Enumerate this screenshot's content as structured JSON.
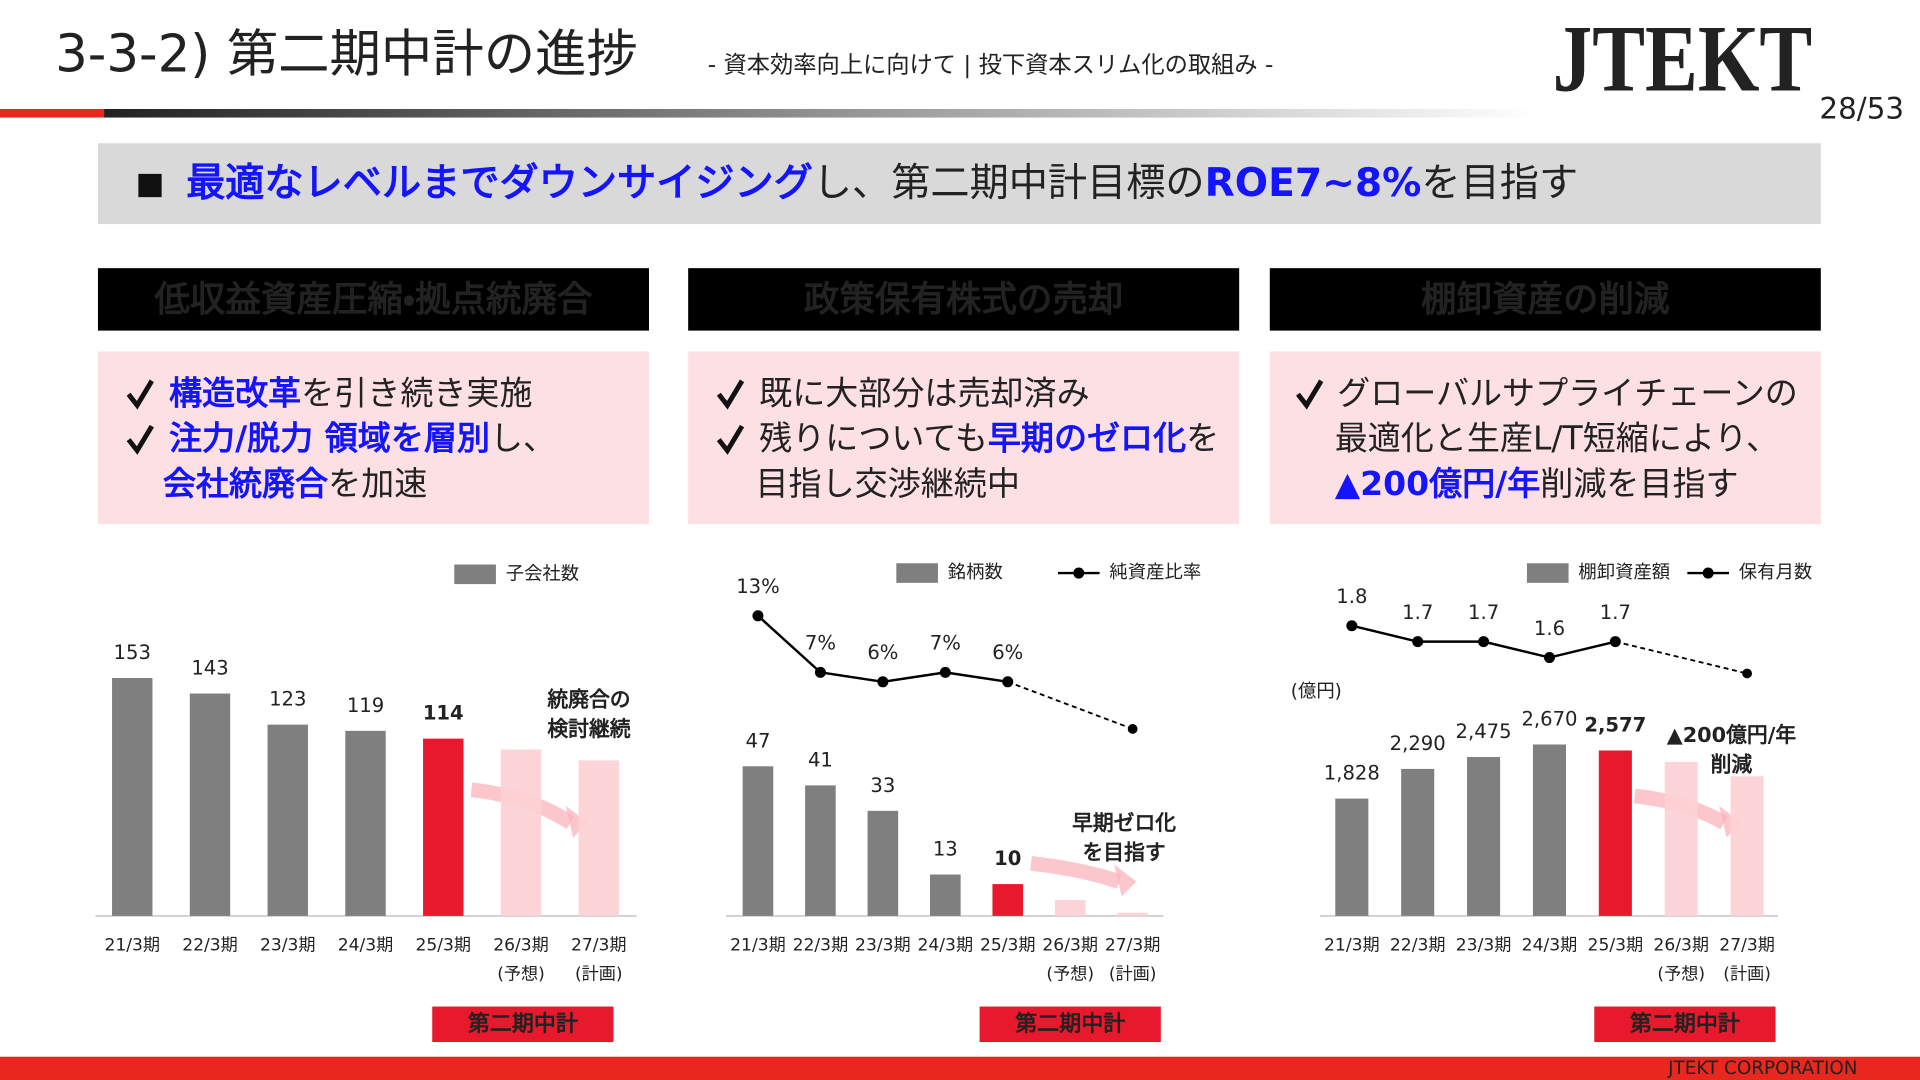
{
  "header": {
    "title": "3-3-2) 第二期中計の進捗",
    "subtitle": "- 資本効率向上に向けて | 投下資本スリム化の取組み -",
    "logo": "JTEKT",
    "page": "28/53"
  },
  "banner": {
    "segments": [
      {
        "text": "最適なレベルまでダウンサイジング",
        "em": true
      },
      "し、第二期中計目標の",
      {
        "text": "ROE7~8%",
        "em": true
      },
      "を目指す"
    ]
  },
  "panels": [
    {
      "heading": "低収益資産圧縮・拠点統廃合",
      "checked": [
        true,
        true,
        false
      ],
      "lines": [
        [
          {
            "text": "構造改革",
            "em": true
          },
          "を引き続き実施"
        ],
        [
          {
            "text": "注力/脱力 領域を層別",
            "em": true
          },
          "し、"
        ],
        [
          {
            "text": "会社統廃合",
            "em": true
          },
          "を加速"
        ]
      ]
    },
    {
      "heading": "政策保有株式の売却",
      "checked": [
        true,
        true,
        false
      ],
      "lines": [
        [
          "既に大部分は売却済み"
        ],
        [
          "残りについても",
          {
            "text": "早期のゼロ化",
            "em": true
          },
          "を"
        ],
        [
          "目指し交渉継続中"
        ]
      ]
    },
    {
      "heading": "棚卸資産の削減",
      "checked": [
        true,
        false,
        false
      ],
      "lines": [
        [
          "グローバルサプライチェーンの"
        ],
        [
          "最適化と生産L/T短縮により、"
        ],
        [
          {
            "text": "▲200億円/年",
            "em": true
          },
          "削減を目指す"
        ]
      ]
    }
  ],
  "chart_data": [
    {
      "type": "bar",
      "categories": [
        "21/3期",
        "22/3期",
        "23/3期",
        "24/3期",
        "25/3期",
        "26/3期",
        "27/3期"
      ],
      "sublabels": [
        null,
        null,
        null,
        null,
        null,
        "(予想)",
        "(計画)"
      ],
      "ylim": [
        0,
        200
      ],
      "series": [
        {
          "name": "子会社数",
          "type": "bar",
          "color": "#7f7f7f",
          "colors": [
            "#7f7f7f",
            "#7f7f7f",
            "#7f7f7f",
            "#7f7f7f",
            "#e8192c",
            "#fdd0d4",
            "#fdd0d4"
          ],
          "values": [
            153,
            143,
            123,
            119,
            114,
            null,
            null
          ],
          "forecast": [
            null,
            null,
            null,
            null,
            null,
            107,
            100
          ]
        }
      ],
      "annotation": [
        "統廃合の",
        "検討継続"
      ],
      "plan_label": "第二期中計"
    },
    {
      "type": "combo",
      "categories": [
        "21/3期",
        "22/3期",
        "23/3期",
        "24/3期",
        "25/3期",
        "26/3期",
        "27/3期"
      ],
      "sublabels": [
        null,
        null,
        null,
        null,
        null,
        "(予想)",
        "(計画)"
      ],
      "ylim": [
        0,
        60
      ],
      "y2lim": [
        0,
        20
      ],
      "series": [
        {
          "name": "銘柄数",
          "type": "bar",
          "color": "#7f7f7f",
          "colors": [
            "#7f7f7f",
            "#7f7f7f",
            "#7f7f7f",
            "#7f7f7f",
            "#e8192c",
            "#fdd0d4",
            "#fdd0d4"
          ],
          "values": [
            47,
            41,
            33,
            13,
            10,
            null,
            null
          ],
          "forecast": [
            null,
            null,
            null,
            null,
            null,
            5,
            1
          ]
        },
        {
          "name": "純資産比率",
          "type": "line",
          "axis": "y2",
          "color": "#000000",
          "values": [
            13,
            7,
            6,
            7,
            6,
            null,
            null
          ],
          "value_labels": [
            "13%",
            "7%",
            "6%",
            "7%",
            "6%",
            null,
            null
          ],
          "forecast": [
            null,
            null,
            null,
            null,
            null,
            null,
            1
          ]
        }
      ],
      "annotation": [
        "早期ゼロ化",
        "を目指す"
      ],
      "plan_label": "第二期中計"
    },
    {
      "type": "combo",
      "categories": [
        "21/3期",
        "22/3期",
        "23/3期",
        "24/3期",
        "25/3期",
        "26/3期",
        "27/3期"
      ],
      "sublabels": [
        null,
        null,
        null,
        null,
        null,
        "(予想)",
        "(計画)"
      ],
      "ylim": [
        0,
        3500
      ],
      "y2lim": [
        0,
        2
      ],
      "unit": "(億円)",
      "series": [
        {
          "name": "棚卸資産額",
          "type": "bar",
          "color": "#7f7f7f",
          "colors": [
            "#7f7f7f",
            "#7f7f7f",
            "#7f7f7f",
            "#7f7f7f",
            "#e8192c",
            "#fdd0d4",
            "#fdd0d4"
          ],
          "values": [
            1828,
            2290,
            2475,
            2670,
            2577,
            null,
            null
          ],
          "value_labels": [
            "1,828",
            "2,290",
            "2,475",
            "2,670",
            "2,577",
            null,
            null
          ],
          "forecast": [
            null,
            null,
            null,
            null,
            null,
            2400,
            2175
          ]
        },
        {
          "name": "保有月数",
          "type": "line",
          "axis": "y2",
          "color": "#000000",
          "values": [
            1.8,
            1.7,
            1.7,
            1.6,
            1.7,
            null,
            null
          ],
          "forecast": [
            null,
            null,
            null,
            null,
            null,
            null,
            1.5
          ]
        }
      ],
      "annotation": [
        "▲200億円/年",
        "削減"
      ],
      "plan_label": "第二期中計"
    }
  ],
  "footer": "JTEKT CORPORATION"
}
